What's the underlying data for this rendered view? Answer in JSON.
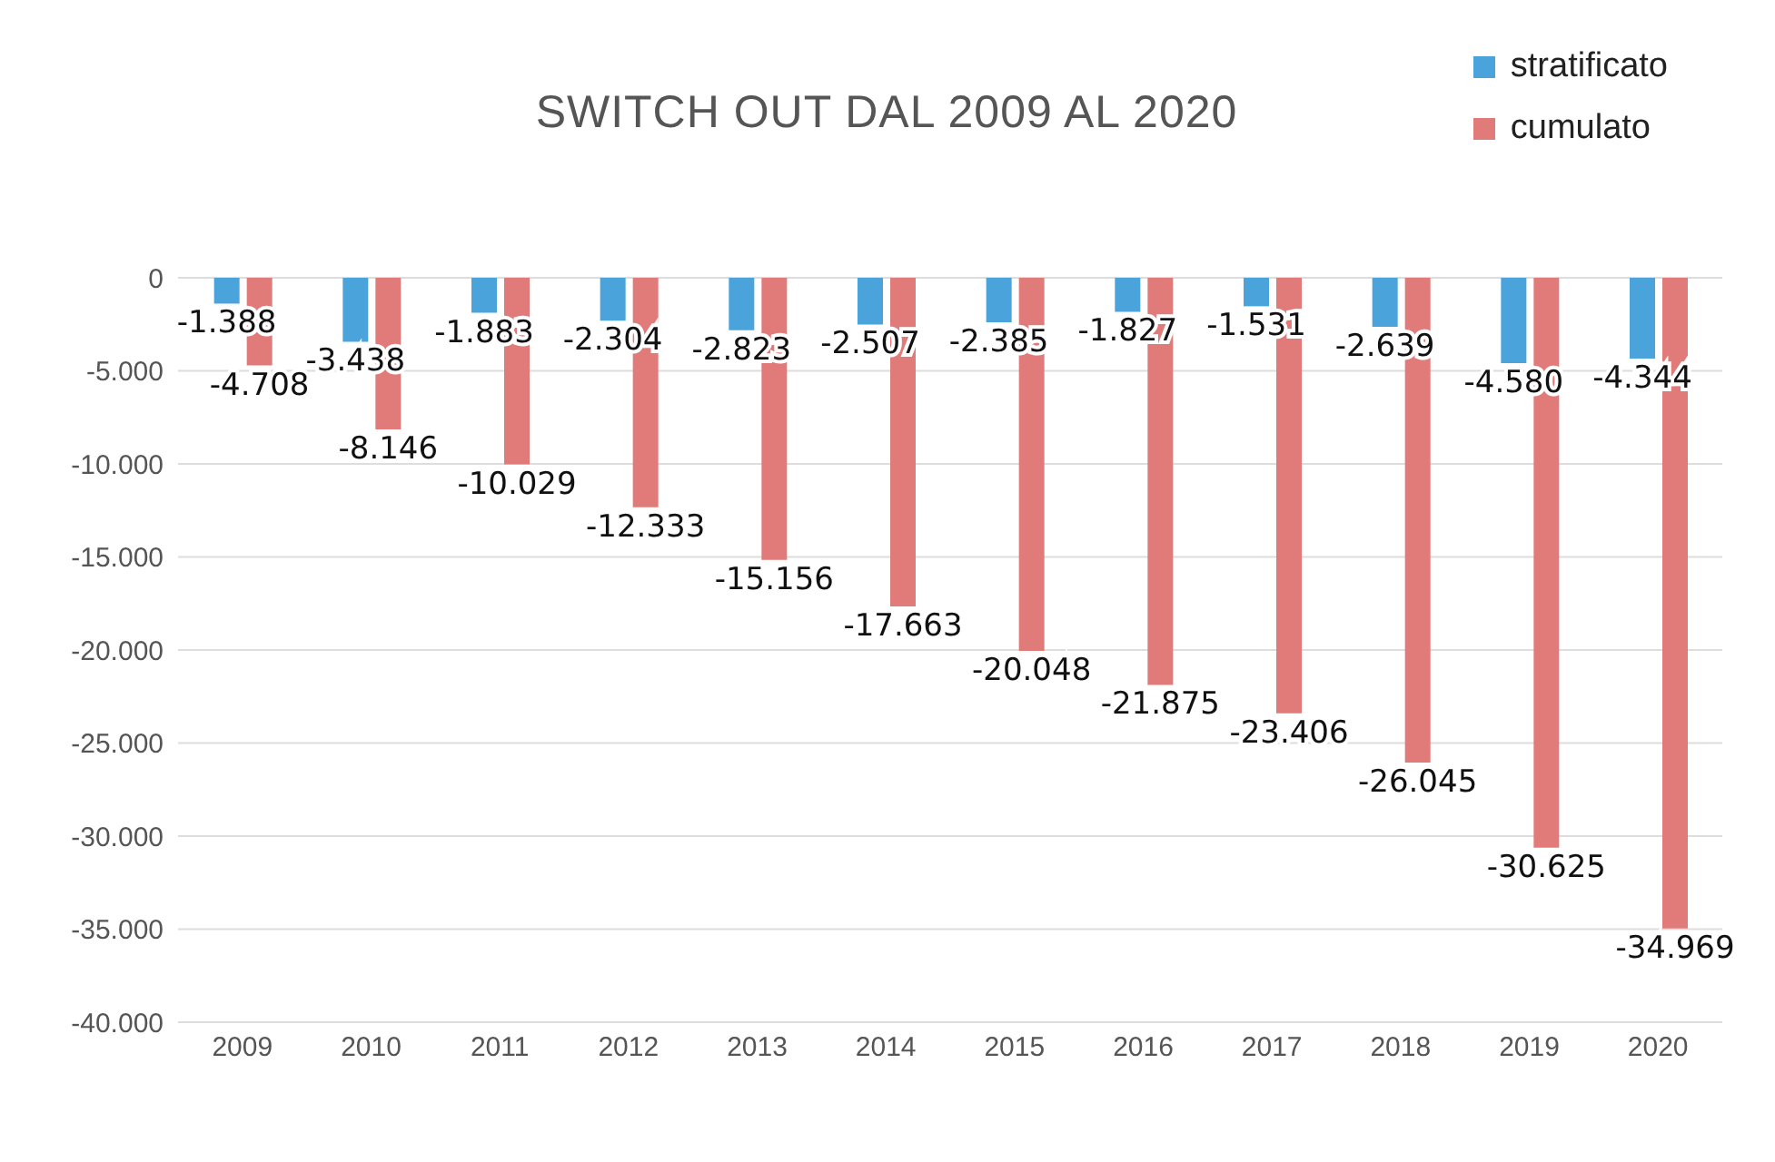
{
  "chart_data": {
    "type": "bar",
    "title": "SWITCH OUT DAL 2009 AL 2020",
    "categories": [
      "2009",
      "2010",
      "2011",
      "2012",
      "2013",
      "2014",
      "2015",
      "2016",
      "2017",
      "2018",
      "2019",
      "2020"
    ],
    "series": [
      {
        "name": "stratificato",
        "color": "#4ba3dc",
        "values": [
          -1388,
          -3438,
          -1883,
          -2304,
          -2823,
          -2507,
          -2385,
          -1827,
          -1531,
          -2639,
          -4580,
          -4344
        ],
        "value_labels": [
          "-1.388",
          "-3.438",
          "-1.883",
          "-2.304",
          "-2.823",
          "-2.507",
          "-2.385",
          "-1.827",
          "-1.531",
          "-2.639",
          "-4.580",
          "-4.344"
        ]
      },
      {
        "name": "cumulato",
        "color": "#e07b79",
        "values": [
          -4708,
          -8146,
          -10029,
          -12333,
          -15156,
          -17663,
          -20048,
          -21875,
          -23406,
          -26045,
          -30625,
          -34969
        ],
        "value_labels": [
          "-4.708",
          "-8.146",
          "-10.029",
          "-12.333",
          "-15.156",
          "-17.663",
          "-20.048",
          "-21.875",
          "-23.406",
          "-26.045",
          "-30.625",
          "-34.969"
        ]
      }
    ],
    "ylim": [
      -40000,
      0
    ],
    "yticks": [
      {
        "value": 0,
        "label": "0"
      },
      {
        "value": -5000,
        "label": "-5.000"
      },
      {
        "value": -10000,
        "label": "-10.000"
      },
      {
        "value": -15000,
        "label": "-15.000"
      },
      {
        "value": -20000,
        "label": "-20.000"
      },
      {
        "value": -25000,
        "label": "-25.000"
      },
      {
        "value": -30000,
        "label": "-30.000"
      },
      {
        "value": -35000,
        "label": "-35.000"
      },
      {
        "value": -40000,
        "label": "-40.000"
      }
    ],
    "grid": "y",
    "legend": "top right"
  }
}
